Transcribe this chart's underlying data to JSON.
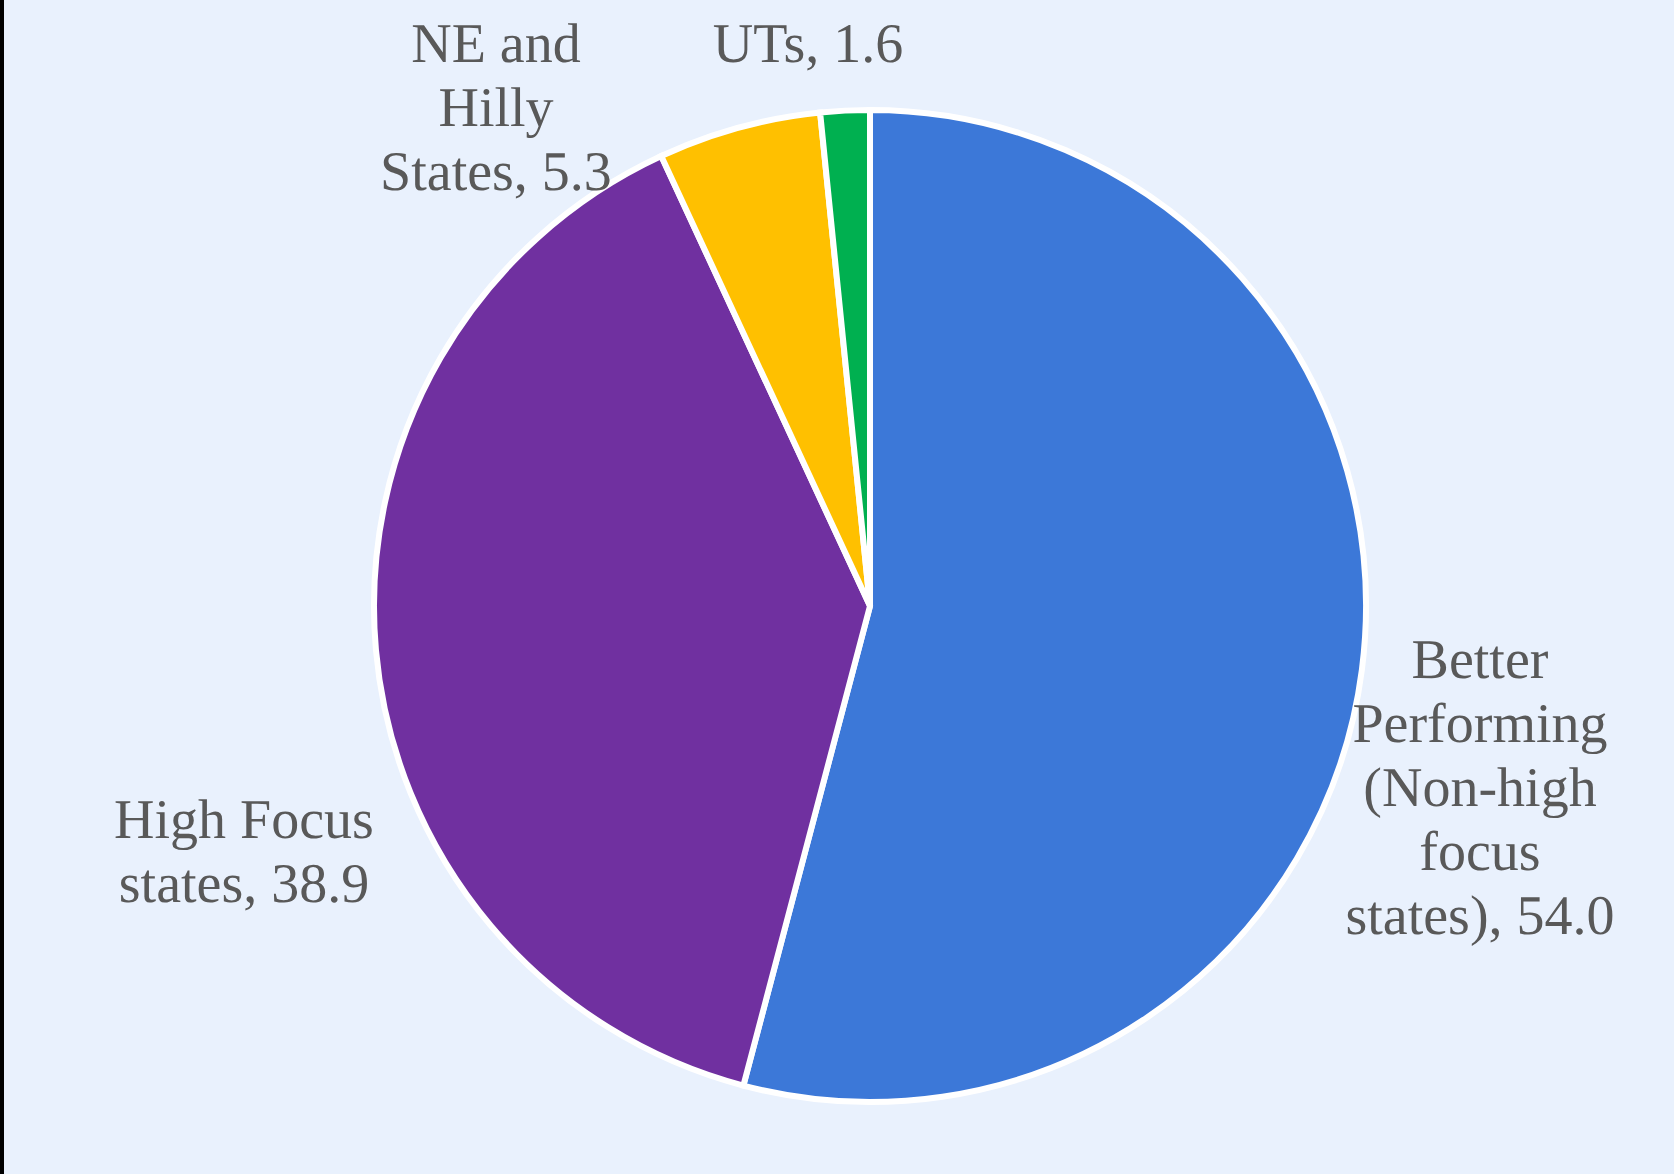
{
  "chart_data": {
    "type": "pie",
    "categories": [
      "Better Performing (Non-high focus states)",
      "High Focus states",
      "NE and Hilly States",
      "UTs"
    ],
    "values": [
      54.0,
      38.9,
      5.3,
      1.6
    ],
    "value_labels": [
      "54.0",
      "38.9",
      "5.3",
      "1.6"
    ],
    "colors": [
      "#3c78d8",
      "#7030a0",
      "#ffc000",
      "#00b050"
    ],
    "legend": false
  }
}
